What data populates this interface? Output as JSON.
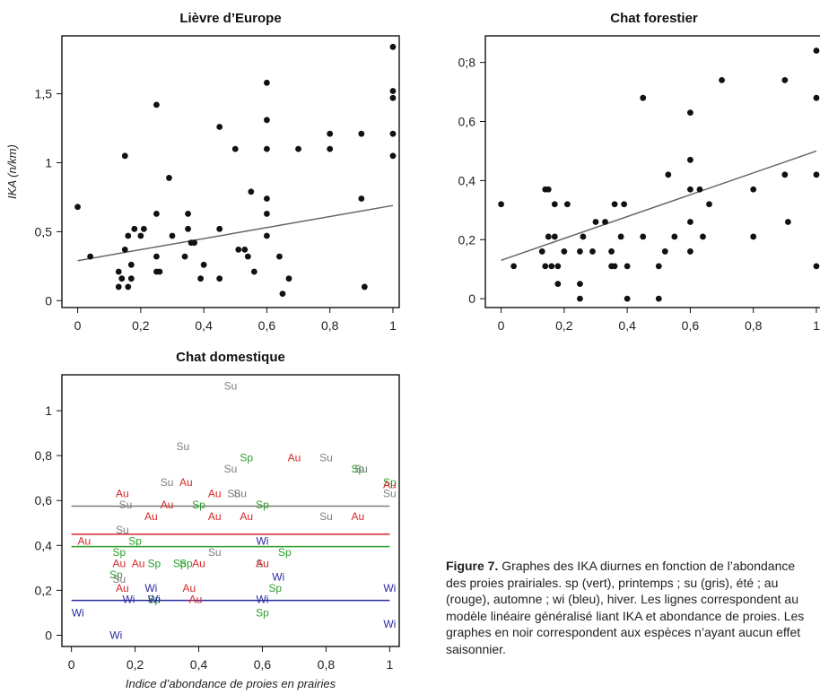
{
  "caption": {
    "label": "Figure 7.",
    "text": "Graphes des IKA diurnes en fonction de l’abondance des proies prairiales. sp (vert), printemps ; su (gris), été ; au (rouge), automne ; wi (bleu), hiver. Les lignes correspondent au modèle linéaire généralisé liant IKA et abondance de proies. Les graphes en noir correspondent aux espèces n’ayant aucun effet saisonnier."
  },
  "colors": {
    "Sp": "#2ca02c",
    "Su": "#7f7f7f",
    "Au": "#d62728",
    "Wi": "#2a2aa0",
    "black": "#111111"
  },
  "chart_data": [
    {
      "type": "scatter",
      "title": "Lièvre d’Europe",
      "ylabel": "IKA (n/km)",
      "xlabel": "",
      "xlim": [
        -0.05,
        1.02
      ],
      "ylim": [
        -0.05,
        1.92
      ],
      "xticks": [
        0,
        0.2,
        0.4,
        0.6,
        0.8,
        1
      ],
      "xtick_labels": [
        "0",
        "0,2",
        "0,4",
        "0,6",
        "0,8",
        "1"
      ],
      "yticks": [
        0,
        0.5,
        1,
        1.5
      ],
      "ytick_labels": [
        "0",
        "0,5",
        "1",
        "1,5"
      ],
      "points": [
        [
          0,
          0.68
        ],
        [
          0.04,
          0.32
        ],
        [
          0.13,
          0.21
        ],
        [
          0.13,
          0.1
        ],
        [
          0.14,
          0.16
        ],
        [
          0.15,
          0.37
        ],
        [
          0.15,
          1.05
        ],
        [
          0.16,
          0.47
        ],
        [
          0.16,
          0.1
        ],
        [
          0.17,
          0.26
        ],
        [
          0.17,
          0.16
        ],
        [
          0.18,
          0.52
        ],
        [
          0.2,
          0.47
        ],
        [
          0.21,
          0.52
        ],
        [
          0.25,
          0.63
        ],
        [
          0.25,
          1.42
        ],
        [
          0.25,
          0.32
        ],
        [
          0.25,
          0.21
        ],
        [
          0.26,
          0.21
        ],
        [
          0.29,
          0.89
        ],
        [
          0.3,
          0.47
        ],
        [
          0.34,
          0.32
        ],
        [
          0.35,
          0.63
        ],
        [
          0.35,
          0.52
        ],
        [
          0.36,
          0.42
        ],
        [
          0.37,
          0.42
        ],
        [
          0.39,
          0.16
        ],
        [
          0.4,
          0.26
        ],
        [
          0.45,
          1.26
        ],
        [
          0.45,
          0.52
        ],
        [
          0.45,
          0.16
        ],
        [
          0.5,
          1.1
        ],
        [
          0.51,
          0.37
        ],
        [
          0.53,
          0.37
        ],
        [
          0.54,
          0.32
        ],
        [
          0.55,
          0.79
        ],
        [
          0.56,
          0.21
        ],
        [
          0.6,
          1.58
        ],
        [
          0.6,
          1.31
        ],
        [
          0.6,
          1.1
        ],
        [
          0.6,
          0.74
        ],
        [
          0.6,
          0.63
        ],
        [
          0.6,
          0.47
        ],
        [
          0.64,
          0.32
        ],
        [
          0.65,
          0.05
        ],
        [
          0.67,
          0.16
        ],
        [
          0.7,
          1.1
        ],
        [
          0.8,
          1.21
        ],
        [
          0.8,
          1.1
        ],
        [
          0.9,
          1.21
        ],
        [
          0.9,
          0.74
        ],
        [
          0.91,
          0.1
        ],
        [
          1,
          1.84
        ],
        [
          1,
          1.52
        ],
        [
          1,
          1.47
        ],
        [
          1,
          1.21
        ],
        [
          1,
          1.05
        ]
      ],
      "fits": [
        {
          "x": [
            0,
            1
          ],
          "y": [
            0.29,
            0.69
          ]
        }
      ]
    },
    {
      "type": "scatter",
      "title": "Chat forestier",
      "ylabel": "",
      "xlabel": "",
      "xlim": [
        -0.05,
        1.02
      ],
      "ylim": [
        -0.03,
        0.89
      ],
      "xticks": [
        0,
        0.2,
        0.4,
        0.6,
        0.8,
        1
      ],
      "xtick_labels": [
        "0",
        "0,2",
        "0,4",
        "0,6",
        "0,8",
        "1"
      ],
      "yticks": [
        0,
        0.2,
        0.4,
        0.6,
        0.8
      ],
      "ytick_labels": [
        "0",
        "0,2",
        "0,4",
        "0,6",
        "0;8"
      ],
      "points": [
        [
          0,
          0.32
        ],
        [
          0.04,
          0.11
        ],
        [
          0.13,
          0.16
        ],
        [
          0.14,
          0.37
        ],
        [
          0.14,
          0.11
        ],
        [
          0.15,
          0.37
        ],
        [
          0.15,
          0.21
        ],
        [
          0.16,
          0.11
        ],
        [
          0.17,
          0.32
        ],
        [
          0.17,
          0.21
        ],
        [
          0.18,
          0.11
        ],
        [
          0.18,
          0.05
        ],
        [
          0.2,
          0.16
        ],
        [
          0.21,
          0.32
        ],
        [
          0.25,
          0.05
        ],
        [
          0.25,
          0
        ],
        [
          0.25,
          0.16
        ],
        [
          0.26,
          0.21
        ],
        [
          0.29,
          0.16
        ],
        [
          0.3,
          0.26
        ],
        [
          0.33,
          0.26
        ],
        [
          0.35,
          0.11
        ],
        [
          0.35,
          0.16
        ],
        [
          0.36,
          0.11
        ],
        [
          0.36,
          0.32
        ],
        [
          0.38,
          0.21
        ],
        [
          0.39,
          0.32
        ],
        [
          0.4,
          0.11
        ],
        [
          0.4,
          0
        ],
        [
          0.45,
          0.68
        ],
        [
          0.45,
          0.21
        ],
        [
          0.5,
          0.11
        ],
        [
          0.5,
          0
        ],
        [
          0.52,
          0.16
        ],
        [
          0.53,
          0.42
        ],
        [
          0.55,
          0.21
        ],
        [
          0.6,
          0.63
        ],
        [
          0.6,
          0.47
        ],
        [
          0.6,
          0.37
        ],
        [
          0.6,
          0.26
        ],
        [
          0.6,
          0.16
        ],
        [
          0.63,
          0.37
        ],
        [
          0.64,
          0.21
        ],
        [
          0.66,
          0.32
        ],
        [
          0.7,
          0.74
        ],
        [
          0.8,
          0.37
        ],
        [
          0.8,
          0.21
        ],
        [
          0.9,
          0.74
        ],
        [
          0.9,
          0.42
        ],
        [
          0.91,
          0.26
        ],
        [
          1,
          0.84
        ],
        [
          1,
          0.68
        ],
        [
          1,
          0.42
        ],
        [
          1,
          0.11
        ]
      ],
      "fits": [
        {
          "x": [
            0,
            1
          ],
          "y": [
            0.13,
            0.5
          ]
        }
      ]
    },
    {
      "type": "scatter",
      "title": "Chat domestique",
      "ylabel": "",
      "xlabel": "Indice d’abondance de proies en prairies",
      "xlim": [
        -0.03,
        1.03
      ],
      "ylim": [
        -0.05,
        1.16
      ],
      "xticks": [
        0,
        0.2,
        0.4,
        0.6,
        0.8,
        1
      ],
      "xtick_labels": [
        "0",
        "0,2",
        "0,4",
        "0,6",
        "0,8",
        "1"
      ],
      "yticks": [
        0,
        0.2,
        0.4,
        0.6,
        0.8,
        1
      ],
      "ytick_labels": [
        "0",
        "0,2",
        "0,4",
        "0,6",
        "0,8",
        "1"
      ],
      "label_points": [
        {
          "s": "Su",
          "x": 0.5,
          "y": 1.11
        },
        {
          "s": "Su",
          "x": 0.35,
          "y": 0.84
        },
        {
          "s": "Sp",
          "x": 0.55,
          "y": 0.79
        },
        {
          "s": "Au",
          "x": 0.7,
          "y": 0.79
        },
        {
          "s": "Su",
          "x": 0.8,
          "y": 0.79
        },
        {
          "s": "Sp",
          "x": 0.9,
          "y": 0.74
        },
        {
          "s": "Su",
          "x": 0.91,
          "y": 0.74
        },
        {
          "s": "Su",
          "x": 0.5,
          "y": 0.74
        },
        {
          "s": "Sp",
          "x": 1,
          "y": 0.68
        },
        {
          "s": "Au",
          "x": 1,
          "y": 0.67
        },
        {
          "s": "Su",
          "x": 1,
          "y": 0.63
        },
        {
          "s": "Su",
          "x": 0.3,
          "y": 0.68
        },
        {
          "s": "Au",
          "x": 0.36,
          "y": 0.68
        },
        {
          "s": "Au",
          "x": 0.16,
          "y": 0.63
        },
        {
          "s": "Au",
          "x": 0.45,
          "y": 0.63
        },
        {
          "s": "Su",
          "x": 0.51,
          "y": 0.63
        },
        {
          "s": "Su",
          "x": 0.53,
          "y": 0.63
        },
        {
          "s": "Su",
          "x": 0.17,
          "y": 0.58
        },
        {
          "s": "Au",
          "x": 0.3,
          "y": 0.58
        },
        {
          "s": "Sp",
          "x": 0.4,
          "y": 0.58
        },
        {
          "s": "Sp",
          "x": 0.6,
          "y": 0.58
        },
        {
          "s": "Au",
          "x": 0.25,
          "y": 0.53
        },
        {
          "s": "Au",
          "x": 0.45,
          "y": 0.53
        },
        {
          "s": "Au",
          "x": 0.55,
          "y": 0.53
        },
        {
          "s": "Su",
          "x": 0.8,
          "y": 0.53
        },
        {
          "s": "Au",
          "x": 0.9,
          "y": 0.53
        },
        {
          "s": "Su",
          "x": 0.16,
          "y": 0.47
        },
        {
          "s": "Au",
          "x": 0.04,
          "y": 0.42
        },
        {
          "s": "Sp",
          "x": 0.2,
          "y": 0.42
        },
        {
          "s": "Wi",
          "x": 0.6,
          "y": 0.42
        },
        {
          "s": "Sp",
          "x": 0.15,
          "y": 0.37
        },
        {
          "s": "Su",
          "x": 0.45,
          "y": 0.37
        },
        {
          "s": "Sp",
          "x": 0.67,
          "y": 0.37
        },
        {
          "s": "Au",
          "x": 0.15,
          "y": 0.32
        },
        {
          "s": "Au",
          "x": 0.21,
          "y": 0.32
        },
        {
          "s": "Sp",
          "x": 0.26,
          "y": 0.32
        },
        {
          "s": "Sp",
          "x": 0.34,
          "y": 0.32
        },
        {
          "s": "Sp",
          "x": 0.36,
          "y": 0.32
        },
        {
          "s": "Au",
          "x": 0.4,
          "y": 0.32
        },
        {
          "s": "Su",
          "x": 0.6,
          "y": 0.32
        },
        {
          "s": "Au",
          "x": 0.6,
          "y": 0.32
        },
        {
          "s": "Sp",
          "x": 0.14,
          "y": 0.27
        },
        {
          "s": "Su",
          "x": 0.15,
          "y": 0.25
        },
        {
          "s": "Wi",
          "x": 0.65,
          "y": 0.26
        },
        {
          "s": "Au",
          "x": 0.16,
          "y": 0.21
        },
        {
          "s": "Wi",
          "x": 0.25,
          "y": 0.21
        },
        {
          "s": "Au",
          "x": 0.37,
          "y": 0.21
        },
        {
          "s": "Sp",
          "x": 0.64,
          "y": 0.21
        },
        {
          "s": "Wi",
          "x": 1,
          "y": 0.21
        },
        {
          "s": "Wi",
          "x": 0.18,
          "y": 0.16
        },
        {
          "s": "Sp",
          "x": 0.26,
          "y": 0.16
        },
        {
          "s": "Wi",
          "x": 0.26,
          "y": 0.16
        },
        {
          "s": "Au",
          "x": 0.39,
          "y": 0.16
        },
        {
          "s": "Wi",
          "x": 0.6,
          "y": 0.16
        },
        {
          "s": "Wi",
          "x": 0.02,
          "y": 0.1
        },
        {
          "s": "Sp",
          "x": 0.6,
          "y": 0.1
        },
        {
          "s": "Wi",
          "x": 1,
          "y": 0.05
        },
        {
          "s": "Wi",
          "x": 0.14,
          "y": 0
        }
      ],
      "fits": [
        {
          "season": "Su",
          "x": [
            0,
            1
          ],
          "y": [
            0.575,
            0.575
          ]
        },
        {
          "season": "Au",
          "x": [
            0,
            1
          ],
          "y": [
            0.45,
            0.45
          ]
        },
        {
          "season": "Sp",
          "x": [
            0,
            1
          ],
          "y": [
            0.395,
            0.395
          ]
        },
        {
          "season": "Wi",
          "x": [
            0,
            1
          ],
          "y": [
            0.155,
            0.155
          ]
        }
      ]
    }
  ]
}
